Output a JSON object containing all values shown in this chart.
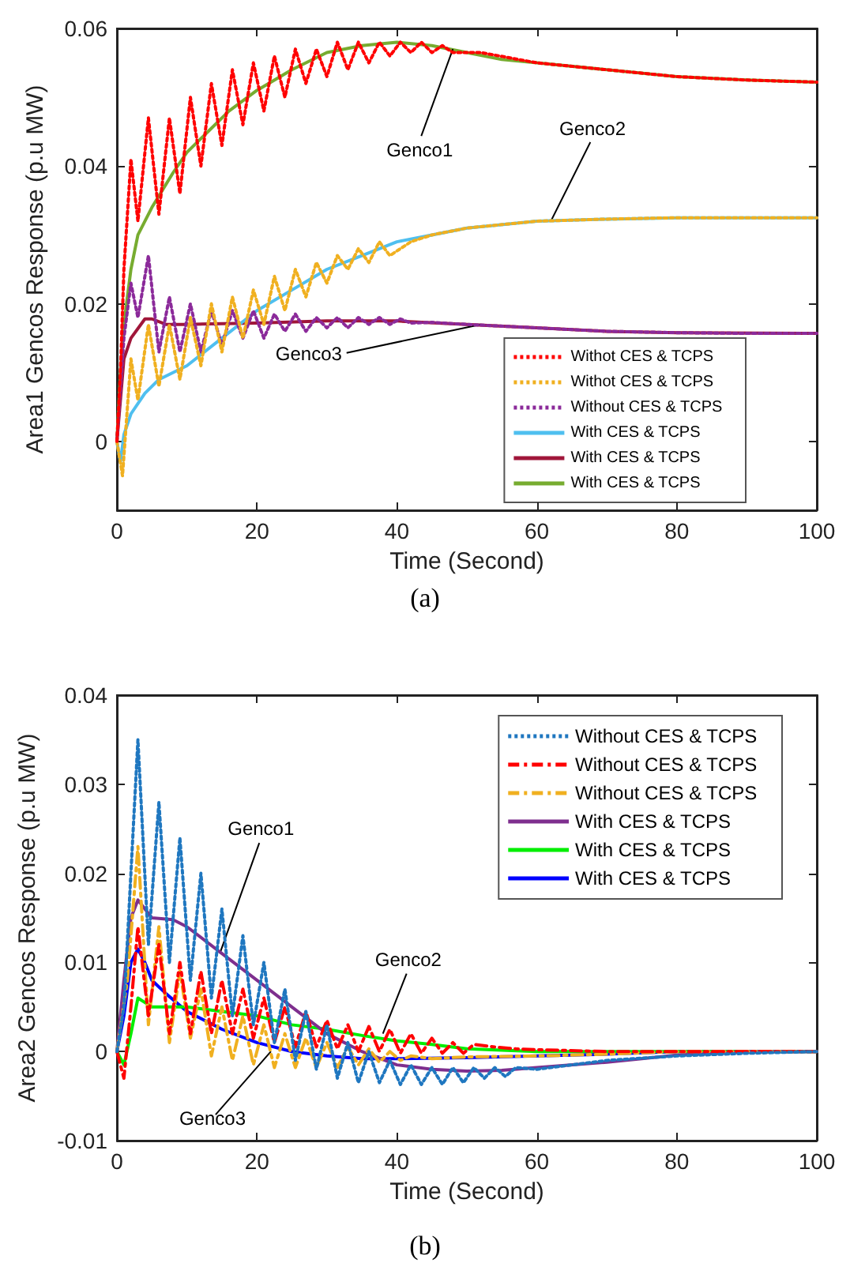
{
  "chart_data": [
    {
      "type": "line",
      "title": "(a)",
      "xlabel": "Time (Second)",
      "ylabel": "Area1 Gencos Response (p.u MW)",
      "xlim": [
        0,
        100
      ],
      "xticks": [
        0,
        20,
        40,
        60,
        80,
        100
      ],
      "ylim": [
        -0.01,
        0.06
      ],
      "yticks": [
        0,
        0.02,
        0.04,
        0.06
      ],
      "grid": false,
      "legend": "bottom right",
      "marker": "none",
      "annotations": [
        {
          "text": "Genco1",
          "x": 48,
          "y": 0.057
        },
        {
          "text": "Genco2",
          "x": 62,
          "y": 0.032
        },
        {
          "text": "Genco3",
          "x": 52,
          "y": 0.017
        }
      ],
      "series": [
        {
          "name": "Withot CES & TCPS",
          "color": "#ff0000",
          "line_style": "dotted",
          "x": [
            0,
            0.5,
            1,
            2,
            3,
            4.5,
            6,
            7.5,
            9,
            10.5,
            12,
            13.5,
            15,
            16.5,
            18,
            19.5,
            21,
            22.5,
            24,
            25.5,
            27,
            28.5,
            30,
            31.5,
            33,
            34.5,
            36,
            37.5,
            39,
            40.5,
            42,
            43.5,
            45,
            46.5,
            48,
            52,
            60,
            70,
            80,
            90,
            100
          ],
          "values": [
            0,
            0.01,
            0.025,
            0.041,
            0.032,
            0.047,
            0.033,
            0.047,
            0.036,
            0.05,
            0.04,
            0.052,
            0.043,
            0.054,
            0.046,
            0.055,
            0.048,
            0.056,
            0.05,
            0.057,
            0.052,
            0.057,
            0.053,
            0.058,
            0.054,
            0.058,
            0.055,
            0.058,
            0.056,
            0.058,
            0.0565,
            0.058,
            0.0565,
            0.0575,
            0.0565,
            0.0565,
            0.055,
            0.054,
            0.053,
            0.0525,
            0.0522
          ]
        },
        {
          "name": "Withot CES & TCPS",
          "color": "#f0b020",
          "line_style": "dotted",
          "x": [
            0,
            0.8,
            2,
            3,
            4.5,
            6,
            7.5,
            9,
            10.5,
            12,
            13.5,
            15,
            16.5,
            18,
            19.5,
            21,
            22.5,
            24,
            25.5,
            27,
            28.5,
            30,
            31.5,
            33,
            34.5,
            36,
            37.5,
            39,
            42,
            45,
            50,
            55,
            60,
            70,
            80,
            90,
            100
          ],
          "values": [
            0,
            -0.005,
            0.012,
            0.006,
            0.017,
            0.008,
            0.017,
            0.009,
            0.018,
            0.011,
            0.02,
            0.013,
            0.021,
            0.015,
            0.022,
            0.017,
            0.024,
            0.019,
            0.025,
            0.021,
            0.026,
            0.023,
            0.027,
            0.025,
            0.028,
            0.026,
            0.029,
            0.027,
            0.029,
            0.03,
            0.031,
            0.0315,
            0.032,
            0.0323,
            0.0325,
            0.0325,
            0.0325
          ]
        },
        {
          "name": "Without CES & TCPS",
          "color": "#8b2a9a",
          "line_style": "dotted",
          "x": [
            0,
            1,
            2,
            3,
            4.5,
            6,
            7.5,
            9,
            10.5,
            12,
            13.5,
            15,
            16.5,
            18,
            19.5,
            21,
            22.5,
            24,
            25.5,
            27,
            28.5,
            30,
            31.5,
            33,
            34.5,
            36,
            37.5,
            39,
            40.5,
            42,
            45,
            50,
            60,
            70,
            80,
            90,
            100
          ],
          "values": [
            0,
            0.015,
            0.023,
            0.018,
            0.027,
            0.013,
            0.021,
            0.013,
            0.02,
            0.013,
            0.019,
            0.014,
            0.019,
            0.015,
            0.019,
            0.015,
            0.0185,
            0.016,
            0.0185,
            0.016,
            0.018,
            0.0165,
            0.018,
            0.0165,
            0.018,
            0.017,
            0.018,
            0.017,
            0.0178,
            0.0172,
            0.0173,
            0.017,
            0.0165,
            0.016,
            0.0158,
            0.0157,
            0.0157
          ]
        },
        {
          "name": "With CES & TCPS",
          "color": "#4fbfef",
          "line_style": "solid",
          "x": [
            0,
            0.5,
            1,
            2,
            4,
            6,
            10,
            15,
            20,
            25,
            30,
            35,
            40,
            45,
            50,
            60,
            70,
            80,
            100
          ],
          "values": [
            0,
            -0.003,
            0.001,
            0.004,
            0.007,
            0.009,
            0.011,
            0.015,
            0.019,
            0.022,
            0.025,
            0.027,
            0.029,
            0.03,
            0.031,
            0.032,
            0.0323,
            0.0325,
            0.0325
          ]
        },
        {
          "name": "With CES & TCPS",
          "color": "#a0163a",
          "line_style": "solid",
          "x": [
            0,
            1,
            2,
            4,
            5,
            7,
            10,
            20,
            30,
            40,
            50,
            60,
            70,
            80,
            100
          ],
          "values": [
            0,
            0.012,
            0.015,
            0.0178,
            0.0178,
            0.017,
            0.017,
            0.0172,
            0.0175,
            0.0175,
            0.017,
            0.0165,
            0.016,
            0.0158,
            0.0157
          ]
        },
        {
          "name": "With CES & TCPS",
          "color": "#77ac30",
          "line_style": "solid",
          "x": [
            0,
            0.5,
            1,
            2,
            3,
            5,
            8,
            10,
            13,
            16,
            20,
            25,
            30,
            35,
            40,
            45,
            50,
            55,
            60,
            70,
            80,
            90,
            100
          ],
          "values": [
            0,
            0.01,
            0.017,
            0.025,
            0.03,
            0.034,
            0.039,
            0.042,
            0.045,
            0.048,
            0.051,
            0.054,
            0.0565,
            0.0575,
            0.058,
            0.0575,
            0.0565,
            0.0555,
            0.055,
            0.054,
            0.053,
            0.0525,
            0.0522
          ]
        }
      ]
    },
    {
      "type": "line",
      "title": "(b)",
      "xlabel": "Time (Second)",
      "ylabel": "Area2 Gencos Response (p.u MW)",
      "xlim": [
        0,
        100
      ],
      "xticks": [
        0,
        20,
        40,
        60,
        80,
        100
      ],
      "ylim": [
        -0.01,
        0.04
      ],
      "yticks": [
        -0.01,
        0,
        0.01,
        0.02,
        0.03,
        0.04
      ],
      "grid": false,
      "legend": "top right",
      "marker": "none",
      "annotations": [
        {
          "text": "Genco1",
          "x": 14.7,
          "y": 0.011
        },
        {
          "text": "Genco2",
          "x": 38,
          "y": 0.002
        },
        {
          "text": "Genco3",
          "x": 22,
          "y": 0
        }
      ],
      "series": [
        {
          "name": "Without CES & TCPS",
          "color": "#1f77c0",
          "line_style": "dotted",
          "x": [
            0,
            1,
            2,
            3,
            4.5,
            6,
            7.5,
            9,
            10.5,
            12,
            13.5,
            15,
            16.5,
            18,
            19.5,
            21,
            22.5,
            24,
            25.5,
            27,
            28.5,
            30,
            31.5,
            33,
            34.5,
            36,
            37.5,
            39,
            40.5,
            42,
            43.5,
            45,
            46.5,
            48,
            49.5,
            51,
            52.5,
            54,
            55.5,
            57,
            60,
            65,
            70,
            80,
            90,
            100
          ],
          "values": [
            0,
            0.005,
            0.02,
            0.035,
            0.012,
            0.028,
            0.01,
            0.024,
            0.008,
            0.02,
            0.006,
            0.016,
            0.004,
            0.013,
            0.003,
            0.01,
            0.001,
            0.007,
            -0.001,
            0.0045,
            -0.002,
            0.003,
            -0.003,
            0.001,
            -0.0035,
            0,
            -0.0035,
            -0.001,
            -0.0037,
            -0.0015,
            -0.0037,
            -0.0018,
            -0.0037,
            -0.0018,
            -0.0035,
            -0.0018,
            -0.003,
            -0.0018,
            -0.0028,
            -0.0018,
            -0.002,
            -0.0015,
            -0.001,
            -0.0005,
            -0.0002,
            0
          ]
        },
        {
          "name": "Without CES & TCPS",
          "color": "#ff0000",
          "line_style": "dashed",
          "x": [
            0,
            1,
            2,
            3,
            4.5,
            6,
            7.5,
            9,
            10.5,
            12,
            13.5,
            15,
            16.5,
            18,
            19.5,
            21,
            22.5,
            24,
            25.5,
            27,
            28.5,
            30,
            31.5,
            33,
            34.5,
            36,
            37.5,
            39,
            40.5,
            42,
            43.5,
            45,
            46.5,
            48,
            49.5,
            51,
            54,
            57,
            60,
            70,
            80,
            90,
            100
          ],
          "values": [
            0,
            -0.003,
            0.005,
            0.014,
            0.004,
            0.012,
            0.002,
            0.01,
            0.002,
            0.009,
            0.002,
            0.008,
            0.002,
            0.007,
            0.0015,
            0.006,
            0.001,
            0.005,
            0.0005,
            0.0045,
            0.0005,
            0.0035,
            0.0003,
            0.003,
            0,
            0.0028,
            0,
            0.0025,
            -0.0002,
            0.002,
            -0.0002,
            0.0015,
            -0.0002,
            0.001,
            -0.0002,
            0.0008,
            0.0005,
            0.0003,
            0.0002,
            0,
            0,
            0,
            0
          ]
        },
        {
          "name": "Without CES & TCPS",
          "color": "#f0b020",
          "line_style": "dashed",
          "x": [
            0,
            1.5,
            3,
            4.5,
            6,
            7.5,
            9,
            10.5,
            12,
            13.5,
            15,
            16.5,
            18,
            19.5,
            21,
            22.5,
            24,
            25.5,
            27,
            28.5,
            30,
            31.5,
            33,
            34.5,
            36,
            37.5,
            39,
            40.5,
            42,
            45,
            50,
            60,
            70,
            80,
            90,
            100
          ],
          "values": [
            0,
            0.008,
            0.023,
            0.003,
            0.014,
            0.001,
            0.009,
            0.0015,
            0.007,
            -0.0005,
            0.005,
            -0.001,
            0.004,
            -0.0015,
            0.003,
            -0.0018,
            0.002,
            -0.0018,
            0.0015,
            -0.0018,
            0.001,
            -0.0018,
            0.0005,
            -0.0015,
            0.0003,
            -0.0012,
            0,
            -0.001,
            -0.0005,
            -0.0008,
            -0.0006,
            -0.0005,
            -0.0003,
            0,
            0,
            0
          ]
        },
        {
          "name": "With CES & TCPS",
          "color": "#7e2f8e",
          "line_style": "solid",
          "x": [
            0,
            1,
            2,
            3,
            4,
            5,
            8,
            10,
            15,
            20,
            25,
            30,
            35,
            40,
            45,
            50,
            55,
            60,
            70,
            80,
            90,
            100
          ],
          "values": [
            0,
            0.008,
            0.015,
            0.017,
            0.016,
            0.015,
            0.0148,
            0.014,
            0.011,
            0.008,
            0.005,
            0.002,
            0,
            -0.0015,
            -0.002,
            -0.0022,
            -0.0021,
            -0.0018,
            -0.0012,
            -0.0004,
            0,
            0
          ]
        },
        {
          "name": "With CES & TCPS",
          "color": "#00ee00",
          "line_style": "solid",
          "x": [
            0,
            1,
            2,
            3,
            4,
            5,
            10,
            15,
            20,
            25,
            30,
            35,
            40,
            45,
            50,
            60,
            70,
            100
          ],
          "values": [
            0,
            -0.0015,
            0.002,
            0.006,
            0.0055,
            0.005,
            0.005,
            0.0045,
            0.004,
            0.003,
            0.0025,
            0.0018,
            0.0012,
            0.0008,
            0.0003,
            0,
            0,
            0
          ]
        },
        {
          "name": "With CES & TCPS",
          "color": "#0000ff",
          "line_style": "solid",
          "x": [
            0,
            1,
            2,
            3,
            4,
            5,
            7,
            10,
            15,
            20,
            25,
            30,
            35,
            40,
            50,
            60,
            70,
            80,
            100
          ],
          "values": [
            0,
            0.004,
            0.01,
            0.0115,
            0.01,
            0.008,
            0.0065,
            0.0045,
            0.0025,
            0.001,
            0,
            -0.0005,
            -0.0008,
            -0.0008,
            -0.0007,
            -0.0005,
            -0.0003,
            0,
            0
          ]
        }
      ]
    }
  ]
}
